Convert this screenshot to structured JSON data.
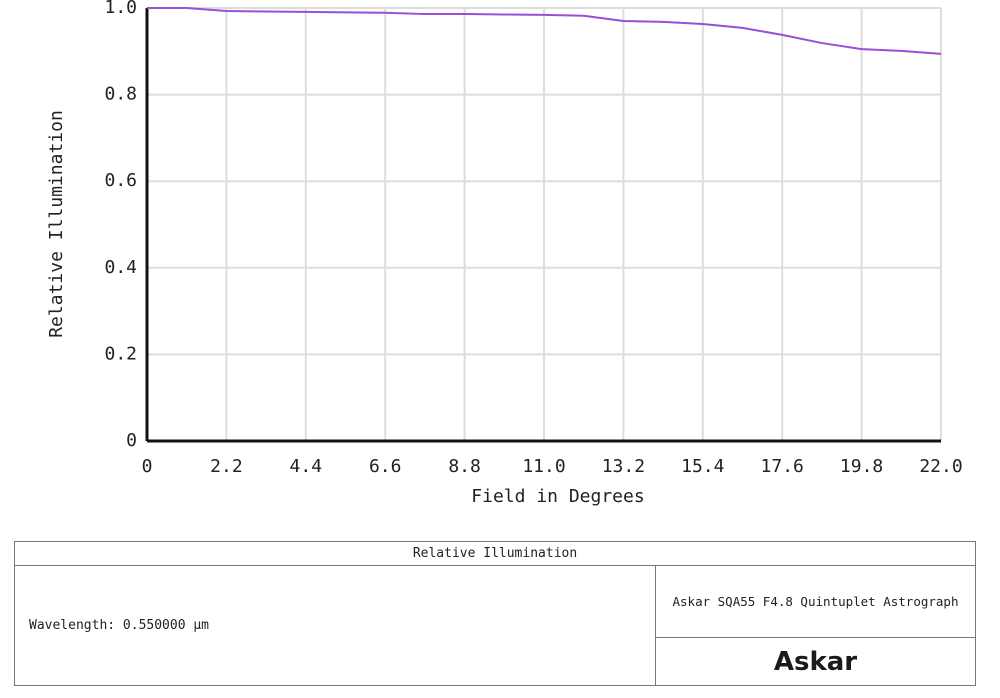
{
  "chart_data": {
    "type": "line",
    "xlabel": "Field in Degrees",
    "ylabel": "Relative Illumination",
    "x": [
      0,
      1.1,
      2.2,
      3.3,
      4.4,
      5.5,
      6.6,
      7.7,
      8.8,
      9.9,
      11.0,
      12.1,
      13.2,
      14.3,
      15.4,
      16.5,
      17.6,
      18.7,
      19.8,
      20.9,
      22.0
    ],
    "values": [
      1.0,
      1.0,
      0.993,
      0.992,
      0.991,
      0.99,
      0.989,
      0.986,
      0.986,
      0.985,
      0.984,
      0.982,
      0.97,
      0.968,
      0.963,
      0.954,
      0.938,
      0.919,
      0.905,
      0.901,
      0.894
    ],
    "color": "#9a4fd6",
    "xlim": [
      0,
      22
    ],
    "ylim": [
      0,
      1
    ],
    "xticks": [
      0,
      2.2,
      4.4,
      6.6,
      8.8,
      {
        "value": 11,
        "label": "11.0"
      },
      13.2,
      15.4,
      17.6,
      19.8,
      {
        "value": 22,
        "label": "22.0"
      }
    ],
    "yticks": [
      0,
      0.2,
      0.4,
      0.6,
      0.8,
      {
        "value": 1,
        "label": "1.0"
      }
    ],
    "grid": true
  },
  "footer": {
    "title": "Relative Illumination",
    "wavelength": "Wavelength: 0.550000 µm",
    "system": "Askar SQA55 F4.8 Quintuplet Astrograph",
    "logo": "Askar"
  }
}
